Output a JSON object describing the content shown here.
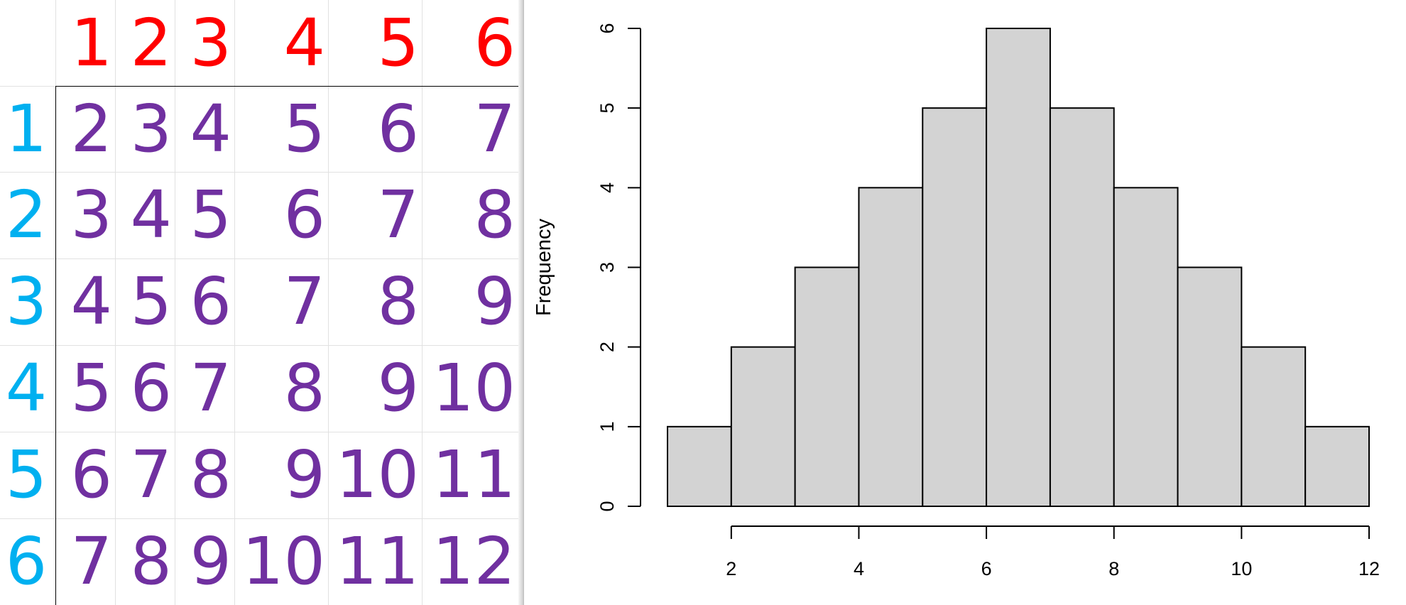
{
  "table": {
    "top_header": [
      "1",
      "2",
      "3",
      "4",
      "5",
      "6"
    ],
    "left_header": [
      "1",
      "2",
      "3",
      "4",
      "5",
      "6"
    ],
    "rows": [
      [
        "2",
        "3",
        "4",
        "5",
        "6",
        "7"
      ],
      [
        "3",
        "4",
        "5",
        "6",
        "7",
        "8"
      ],
      [
        "4",
        "5",
        "6",
        "7",
        "8",
        "9"
      ],
      [
        "5",
        "6",
        "7",
        "8",
        "9",
        "10"
      ],
      [
        "6",
        "7",
        "8",
        "9",
        "10",
        "11"
      ],
      [
        "7",
        "8",
        "9",
        "10",
        "11",
        "12"
      ]
    ],
    "colors": {
      "top_header": "#ff0000",
      "left_header": "#00b0f0",
      "values": "#7030a0"
    }
  },
  "chart_data": {
    "type": "bar",
    "subtype": "histogram",
    "bins": [
      [
        1,
        2
      ],
      [
        2,
        3
      ],
      [
        3,
        4
      ],
      [
        4,
        5
      ],
      [
        5,
        6
      ],
      [
        6,
        7
      ],
      [
        7,
        8
      ],
      [
        8,
        9
      ],
      [
        9,
        10
      ],
      [
        10,
        11
      ],
      [
        11,
        12
      ]
    ],
    "values": [
      1,
      2,
      3,
      4,
      5,
      6,
      5,
      4,
      3,
      2,
      1
    ],
    "title": "",
    "xlabel": "",
    "ylabel": "Frequency",
    "xlim": [
      1,
      12
    ],
    "ylim": [
      0,
      6
    ],
    "x_ticks": [
      "2",
      "4",
      "6",
      "8",
      "10",
      "12"
    ],
    "y_ticks": [
      "0",
      "1",
      "2",
      "3",
      "4",
      "5",
      "6"
    ],
    "bar_color": "#d3d3d3",
    "grid": false,
    "legend": "none"
  }
}
